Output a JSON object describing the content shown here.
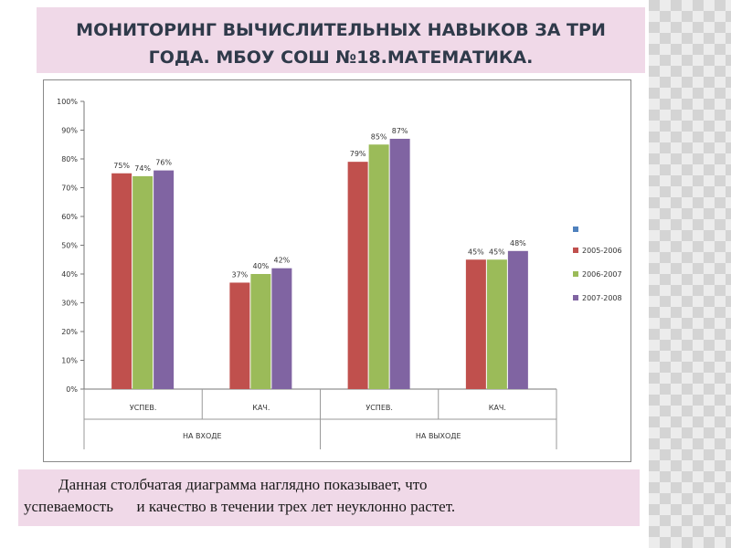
{
  "slide": {
    "title_line1": "МОНИТОРИНГ ВЫЧИСЛИТЕЛЬНЫХ НАВЫКОВ ЗА ТРИ",
    "title_line2": "ГОДА. МБОУ СОШ №18.МАТЕМАТИКА.",
    "caption_line1": "Данная столбчатая диаграмма наглядно показывает, что",
    "caption_line2": "успеваемость      и качество в течении трех лет неуклонно растет."
  },
  "chart_data": {
    "type": "bar",
    "title": "",
    "xlabel": "",
    "ylabel": "",
    "ylim": [
      0,
      100
    ],
    "yticks": [
      "0%",
      "10%",
      "20%",
      "30%",
      "40%",
      "50%",
      "60%",
      "70%",
      "80%",
      "90%",
      "100%"
    ],
    "categories": [
      "УСПЕВ.",
      "КАЧ.",
      "УСПЕВ.",
      "КАЧ."
    ],
    "groups": [
      "НА ВХОДЕ",
      "НА ВЫХОДЕ"
    ],
    "series": [
      {
        "name": "2005-2006",
        "values": [
          75,
          37,
          79,
          45
        ],
        "labels": [
          "75%",
          "37%",
          "79%",
          "45%"
        ],
        "color": "#c0504d"
      },
      {
        "name": "2006-2007",
        "values": [
          74,
          40,
          85,
          45
        ],
        "labels": [
          "74%",
          "40%",
          "85%",
          "45%"
        ],
        "color": "#9bbb59"
      },
      {
        "name": "2007-2008",
        "values": [
          76,
          42,
          87,
          48
        ],
        "labels": [
          "76%",
          "42%",
          "87%",
          "48%"
        ],
        "color": "#8064a2"
      }
    ],
    "legend_extra_color": "#4f81bd",
    "legend_position": "right",
    "grid": false
  }
}
